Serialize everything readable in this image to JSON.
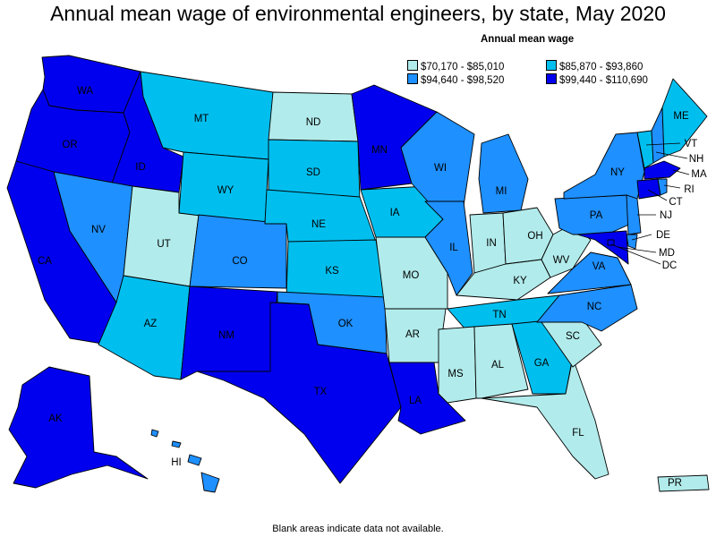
{
  "title": "Annual mean wage of environmental engineers, by state, May 2020",
  "legend": {
    "title": "Annual mean wage",
    "items": [
      {
        "label": "$70,170 - $85,010",
        "color": "#b2ebeb"
      },
      {
        "label": "$85,870 - $93,860",
        "color": "#00bfef"
      },
      {
        "label": "$94,640 - $98,520",
        "color": "#1e90ff"
      },
      {
        "label": "$99,440 - $110,690",
        "color": "#0000ee"
      }
    ]
  },
  "footnote": "Blank areas indicate data not available.",
  "states": [
    {
      "abbr": "WA",
      "bin": 3
    },
    {
      "abbr": "OR",
      "bin": 3
    },
    {
      "abbr": "CA",
      "bin": 3
    },
    {
      "abbr": "ID",
      "bin": 3
    },
    {
      "abbr": "NV",
      "bin": 2
    },
    {
      "abbr": "AZ",
      "bin": 1
    },
    {
      "abbr": "UT",
      "bin": 0
    },
    {
      "abbr": "MT",
      "bin": 1
    },
    {
      "abbr": "WY",
      "bin": 1
    },
    {
      "abbr": "CO",
      "bin": 2
    },
    {
      "abbr": "NM",
      "bin": 3
    },
    {
      "abbr": "ND",
      "bin": 0
    },
    {
      "abbr": "SD",
      "bin": 1
    },
    {
      "abbr": "NE",
      "bin": 1
    },
    {
      "abbr": "KS",
      "bin": 1
    },
    {
      "abbr": "OK",
      "bin": 2
    },
    {
      "abbr": "TX",
      "bin": 3
    },
    {
      "abbr": "MN",
      "bin": 3
    },
    {
      "abbr": "IA",
      "bin": 1
    },
    {
      "abbr": "MO",
      "bin": 0
    },
    {
      "abbr": "AR",
      "bin": 0
    },
    {
      "abbr": "LA",
      "bin": 3
    },
    {
      "abbr": "WI",
      "bin": 2
    },
    {
      "abbr": "IL",
      "bin": 2
    },
    {
      "abbr": "MI",
      "bin": 2
    },
    {
      "abbr": "IN",
      "bin": 0
    },
    {
      "abbr": "OH",
      "bin": 0
    },
    {
      "abbr": "KY",
      "bin": 0
    },
    {
      "abbr": "TN",
      "bin": 1
    },
    {
      "abbr": "MS",
      "bin": 0
    },
    {
      "abbr": "AL",
      "bin": 0
    },
    {
      "abbr": "GA",
      "bin": 1
    },
    {
      "abbr": "FL",
      "bin": 0
    },
    {
      "abbr": "SC",
      "bin": 0
    },
    {
      "abbr": "NC",
      "bin": 2
    },
    {
      "abbr": "VA",
      "bin": 2
    },
    {
      "abbr": "WV",
      "bin": 0
    },
    {
      "abbr": "PA",
      "bin": 2
    },
    {
      "abbr": "NY",
      "bin": 2
    },
    {
      "abbr": "ME",
      "bin": 1
    },
    {
      "abbr": "VT",
      "bin": 1
    },
    {
      "abbr": "NH",
      "bin": 2
    },
    {
      "abbr": "MA",
      "bin": 3
    },
    {
      "abbr": "RI",
      "bin": 2
    },
    {
      "abbr": "CT",
      "bin": 3
    },
    {
      "abbr": "NJ",
      "bin": 2
    },
    {
      "abbr": "DE",
      "bin": 2
    },
    {
      "abbr": "MD",
      "bin": 3
    },
    {
      "abbr": "DC",
      "bin": 3
    },
    {
      "abbr": "AK",
      "bin": 3
    },
    {
      "abbr": "HI",
      "bin": 2
    },
    {
      "abbr": "PR",
      "bin": 0
    }
  ]
}
